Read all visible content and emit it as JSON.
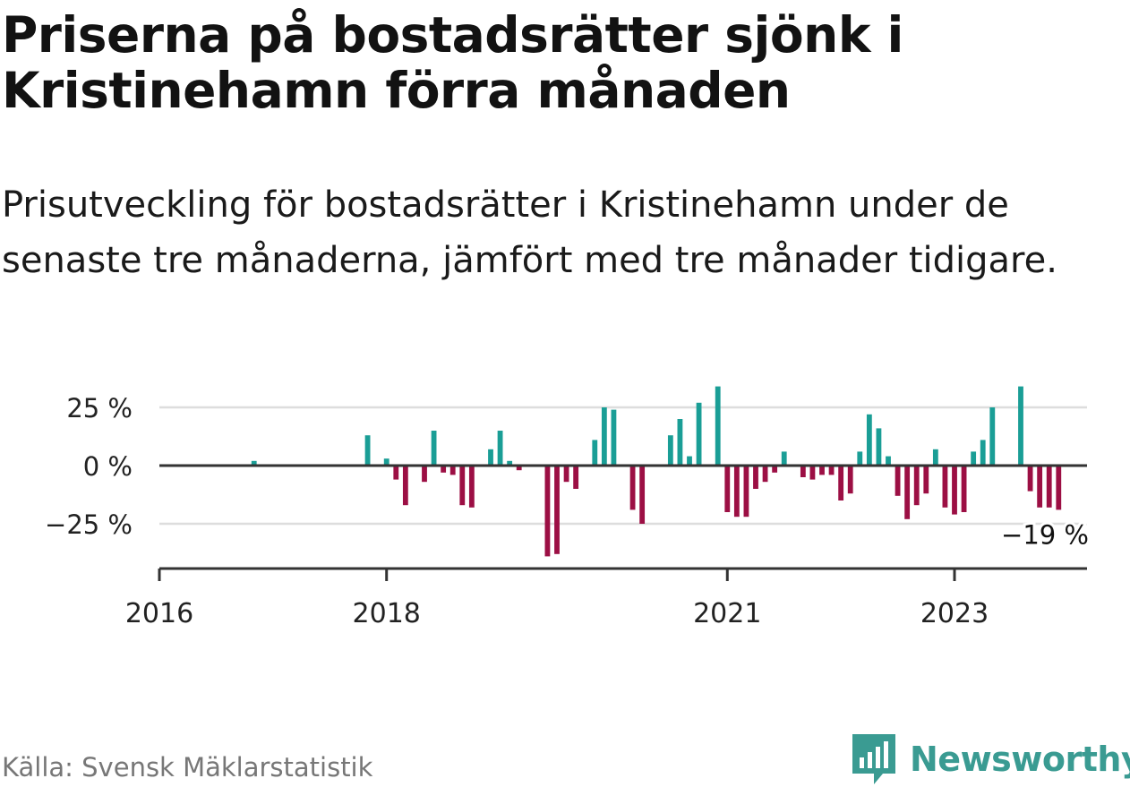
{
  "title": "Priserna på bostadsrätter sjönk i Kristinehamn förra månaden",
  "subtitle": "Prisutveckling för bostadsrätter i Kristinehamn under de senaste tre månaderna, jämfört med tre månader tidigare.",
  "source": "Källa: Svensk Mäklarstatistik",
  "brand": "Newsworthy",
  "colors": {
    "positive": "#1a9e96",
    "negative": "#9c0f44",
    "brand": "#3a9b92",
    "axis": "#333333",
    "grid": "#dddddd"
  },
  "chart_data": {
    "type": "bar",
    "x_unit": "month",
    "x_range": [
      "2016-01",
      "2024-03"
    ],
    "ylim": [
      -45,
      35
    ],
    "y_ticks": [
      {
        "value": 25,
        "label": "25 %"
      },
      {
        "value": 0,
        "label": "0 %"
      },
      {
        "value": -25,
        "label": "−25 %"
      }
    ],
    "x_ticks": [
      {
        "date": "2016-01",
        "label": "2016"
      },
      {
        "date": "2018-01",
        "label": "2018"
      },
      {
        "date": "2021-01",
        "label": "2021"
      },
      {
        "date": "2023-01",
        "label": "2023"
      }
    ],
    "annotation": {
      "date": "2023-12",
      "value": -19,
      "label": "−19 %"
    },
    "points": [
      {
        "date": "2016-11",
        "value": 2
      },
      {
        "date": "2017-11",
        "value": 13
      },
      {
        "date": "2018-01",
        "value": 3
      },
      {
        "date": "2018-02",
        "value": -6
      },
      {
        "date": "2018-03",
        "value": -17
      },
      {
        "date": "2018-05",
        "value": -7
      },
      {
        "date": "2018-06",
        "value": 15
      },
      {
        "date": "2018-07",
        "value": -3
      },
      {
        "date": "2018-08",
        "value": -4
      },
      {
        "date": "2018-09",
        "value": -17
      },
      {
        "date": "2018-10",
        "value": -18
      },
      {
        "date": "2018-12",
        "value": 7
      },
      {
        "date": "2019-01",
        "value": 15
      },
      {
        "date": "2019-02",
        "value": 2
      },
      {
        "date": "2019-03",
        "value": -2
      },
      {
        "date": "2019-06",
        "value": -39
      },
      {
        "date": "2019-07",
        "value": -38
      },
      {
        "date": "2019-08",
        "value": -7
      },
      {
        "date": "2019-09",
        "value": -10
      },
      {
        "date": "2019-11",
        "value": 11
      },
      {
        "date": "2019-12",
        "value": 25
      },
      {
        "date": "2020-01",
        "value": 24
      },
      {
        "date": "2020-03",
        "value": -19
      },
      {
        "date": "2020-04",
        "value": -25
      },
      {
        "date": "2020-07",
        "value": 13
      },
      {
        "date": "2020-08",
        "value": 20
      },
      {
        "date": "2020-09",
        "value": 4
      },
      {
        "date": "2020-10",
        "value": 27
      },
      {
        "date": "2020-12",
        "value": 34
      },
      {
        "date": "2021-01",
        "value": -20
      },
      {
        "date": "2021-02",
        "value": -22
      },
      {
        "date": "2021-03",
        "value": -22
      },
      {
        "date": "2021-04",
        "value": -10
      },
      {
        "date": "2021-05",
        "value": -7
      },
      {
        "date": "2021-06",
        "value": -3
      },
      {
        "date": "2021-07",
        "value": 6
      },
      {
        "date": "2021-09",
        "value": -5
      },
      {
        "date": "2021-10",
        "value": -6
      },
      {
        "date": "2021-11",
        "value": -4
      },
      {
        "date": "2021-12",
        "value": -4
      },
      {
        "date": "2022-01",
        "value": -15
      },
      {
        "date": "2022-02",
        "value": -12
      },
      {
        "date": "2022-03",
        "value": 6
      },
      {
        "date": "2022-04",
        "value": 22
      },
      {
        "date": "2022-05",
        "value": 16
      },
      {
        "date": "2022-06",
        "value": 4
      },
      {
        "date": "2022-07",
        "value": -13
      },
      {
        "date": "2022-08",
        "value": -23
      },
      {
        "date": "2022-09",
        "value": -17
      },
      {
        "date": "2022-10",
        "value": -12
      },
      {
        "date": "2022-11",
        "value": 7
      },
      {
        "date": "2022-12",
        "value": -18
      },
      {
        "date": "2023-01",
        "value": -21
      },
      {
        "date": "2023-02",
        "value": -20
      },
      {
        "date": "2023-03",
        "value": 6
      },
      {
        "date": "2023-04",
        "value": 11
      },
      {
        "date": "2023-05",
        "value": 25
      },
      {
        "date": "2023-08",
        "value": 34
      },
      {
        "date": "2023-09",
        "value": -11
      },
      {
        "date": "2023-10",
        "value": -18
      },
      {
        "date": "2023-11",
        "value": -18
      },
      {
        "date": "2023-12",
        "value": -19
      }
    ]
  }
}
